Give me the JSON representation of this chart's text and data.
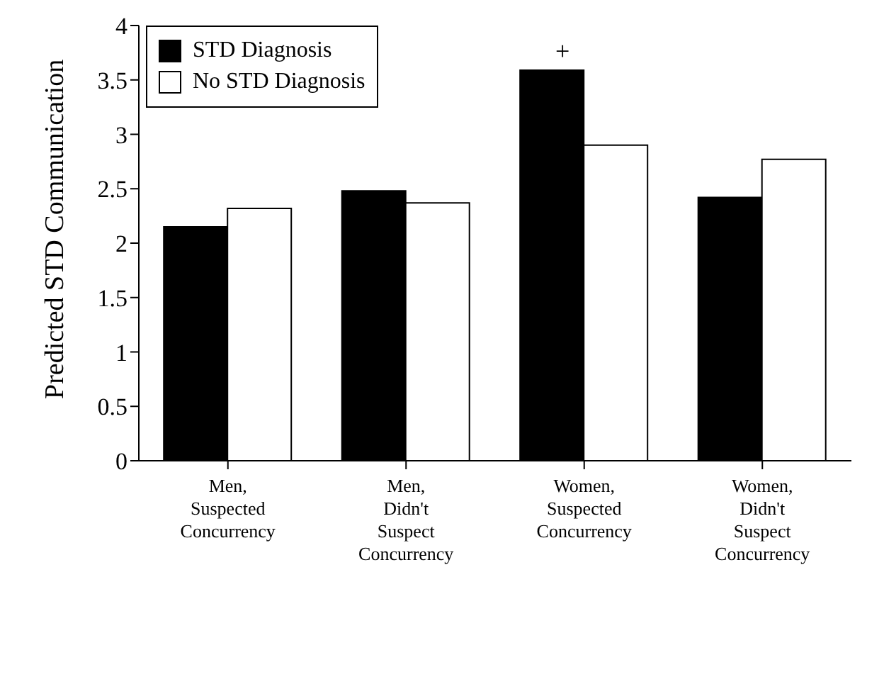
{
  "chart_data": {
    "type": "bar",
    "ylabel": "Predicted STD Communication",
    "categories": [
      "Men, Suspected Concurrency",
      "Men, Didn't Suspect Concurrency",
      "Women, Suspected Concurrency",
      "Women, Didn't Suspect Concurrency"
    ],
    "series": [
      {
        "name": "STD Diagnosis",
        "color": "#000000",
        "values": [
          2.15,
          2.48,
          3.59,
          2.42
        ]
      },
      {
        "name": "No STD Diagnosis",
        "color": "#ffffff",
        "values": [
          2.32,
          2.37,
          2.9,
          2.77
        ]
      }
    ],
    "ylim": [
      0,
      4
    ],
    "yticks": [
      0,
      0.5,
      1,
      1.5,
      2,
      2.5,
      3,
      3.5,
      4
    ],
    "grid": false,
    "legend": "top left",
    "annotations": [
      "+"
    ]
  }
}
